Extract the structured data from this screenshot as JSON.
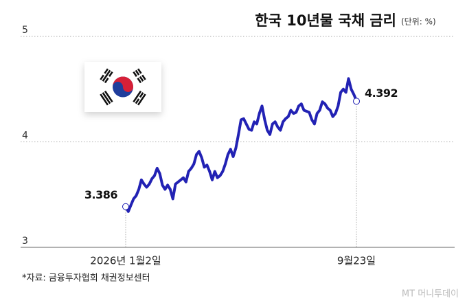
{
  "chart_data": {
    "type": "line",
    "title": "한국 10년물 국채 금리",
    "subtitle": "(단위: %)",
    "source": "*자료: 금융투자협회 채권정보센터",
    "watermark": "MT 머니투데이",
    "categories": [
      "2026년 1월2일",
      null,
      null,
      null,
      null,
      null,
      null,
      null,
      null,
      null,
      null,
      null,
      null,
      null,
      null,
      null,
      null,
      null,
      null,
      null,
      null,
      null,
      null,
      null,
      null,
      null,
      null,
      null,
      null,
      null,
      null,
      null,
      null,
      null,
      null,
      null,
      null,
      null,
      null,
      null,
      null,
      null,
      null,
      null,
      null,
      null,
      null,
      null,
      null,
      null,
      null,
      null,
      null,
      null,
      null,
      null,
      null,
      null,
      null,
      null,
      null,
      null,
      null,
      null,
      null,
      null,
      null,
      null,
      null,
      null,
      null,
      null,
      null,
      null,
      null,
      null,
      null,
      null,
      null,
      null,
      null,
      null,
      null,
      null,
      null,
      null,
      null,
      null,
      "9월23일"
    ],
    "values": [
      3.386,
      3.34,
      3.4,
      3.46,
      3.49,
      3.55,
      3.64,
      3.6,
      3.57,
      3.6,
      3.65,
      3.68,
      3.75,
      3.7,
      3.59,
      3.55,
      3.59,
      3.55,
      3.46,
      3.6,
      3.62,
      3.64,
      3.66,
      3.62,
      3.72,
      3.75,
      3.79,
      3.88,
      3.91,
      3.85,
      3.76,
      3.78,
      3.72,
      3.64,
      3.72,
      3.66,
      3.68,
      3.72,
      3.79,
      3.88,
      3.93,
      3.86,
      3.94,
      4.07,
      4.21,
      4.22,
      4.17,
      4.12,
      4.11,
      4.19,
      4.17,
      4.27,
      4.34,
      4.21,
      4.11,
      4.07,
      4.17,
      4.19,
      4.14,
      4.11,
      4.19,
      4.22,
      4.24,
      4.3,
      4.27,
      4.28,
      4.34,
      4.36,
      4.3,
      4.29,
      4.28,
      4.21,
      4.17,
      4.27,
      4.3,
      4.38,
      4.36,
      4.32,
      4.3,
      4.24,
      4.27,
      4.34,
      4.47,
      4.5,
      4.47,
      4.6,
      4.5,
      4.45,
      4.392
    ],
    "color": "#2222b4",
    "ylim": [
      3,
      5
    ],
    "yticks": [
      3,
      4,
      5
    ],
    "grid": true
  }
}
